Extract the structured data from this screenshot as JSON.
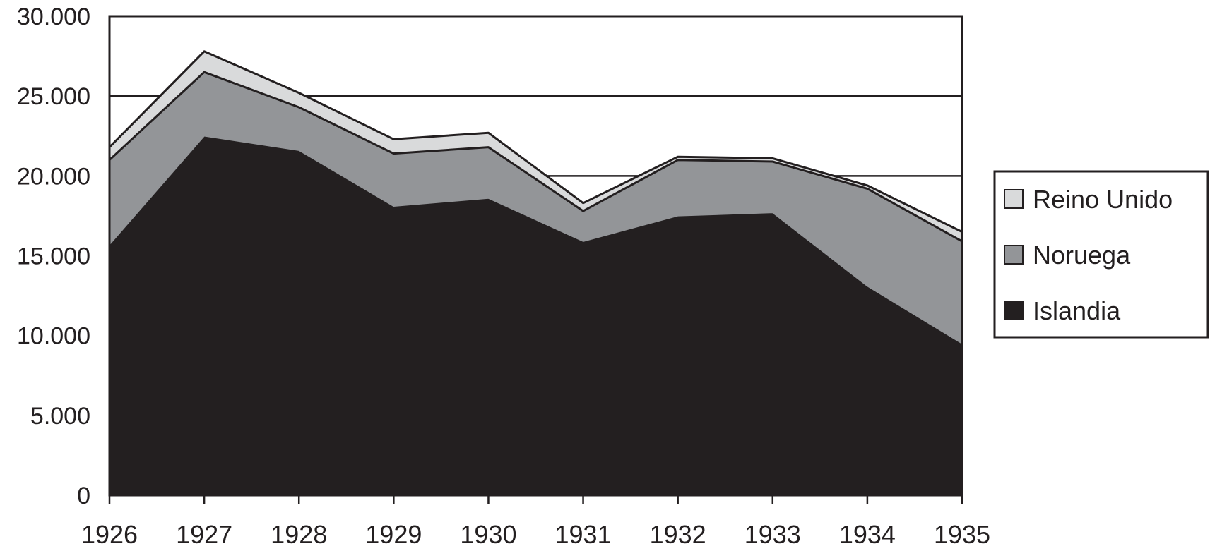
{
  "chart_data": {
    "type": "area",
    "stacked": true,
    "categories": [
      "1926",
      "1927",
      "1928",
      "1929",
      "1930",
      "1931",
      "1932",
      "1933",
      "1934",
      "1935"
    ],
    "series": [
      {
        "name": "Islandia",
        "color": "#231f20",
        "values": [
          15700,
          22500,
          21600,
          18100,
          18600,
          15900,
          17500,
          17700,
          13100,
          9500
        ]
      },
      {
        "name": "Noruega",
        "color": "#939598",
        "values": [
          5300,
          4000,
          2700,
          3300,
          3200,
          1900,
          3500,
          3200,
          6100,
          6400
        ]
      },
      {
        "name": "Reino Unido",
        "color": "#d9dadb",
        "values": [
          800,
          1300,
          900,
          900,
          900,
          500,
          200,
          200,
          200,
          600
        ]
      }
    ],
    "y_ticks": [
      "0",
      "5.000",
      "10.000",
      "15.000",
      "20.000",
      "25.000",
      "30.000"
    ],
    "ylim": [
      0,
      30000
    ],
    "grid": true,
    "legend_position": "right",
    "legend_order": [
      "Reino Unido",
      "Noruega",
      "Islandia"
    ]
  }
}
